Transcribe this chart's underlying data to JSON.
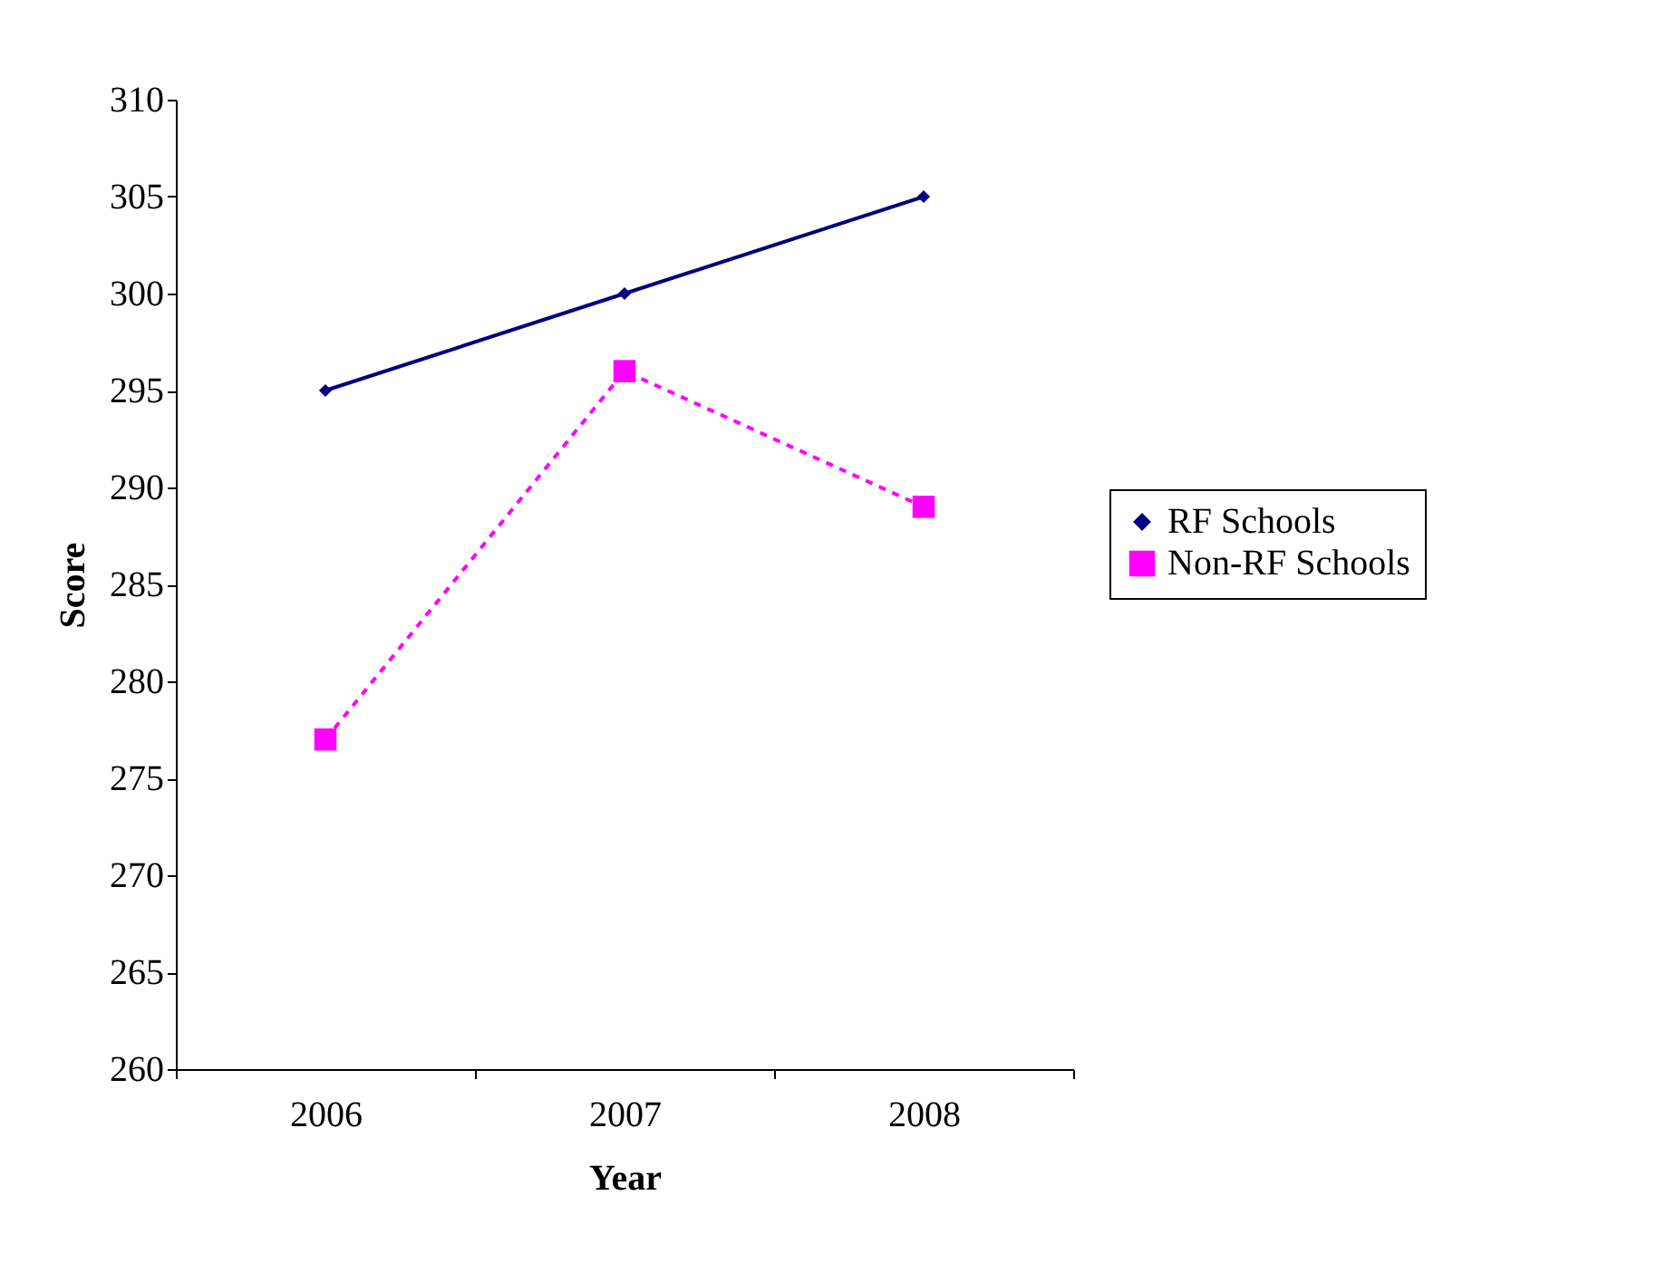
{
  "chart_data": {
    "type": "line",
    "xlabel": "Year",
    "ylabel": "Score",
    "categories": [
      "2006",
      "2007",
      "2008"
    ],
    "series": [
      {
        "name": "RF Schools",
        "color": "#000080",
        "values": [
          295,
          300,
          305
        ],
        "marker": "diamond",
        "line_style": "solid"
      },
      {
        "name": "Non-RF Schools",
        "color": "#ff00ff",
        "values": [
          277,
          296,
          289
        ],
        "marker": "square",
        "line_style": "dashed"
      }
    ],
    "ylim": [
      260,
      310
    ],
    "yticks": [
      260,
      265,
      270,
      275,
      280,
      285,
      290,
      295,
      300,
      305,
      310
    ],
    "grid": false,
    "legend": "right"
  }
}
